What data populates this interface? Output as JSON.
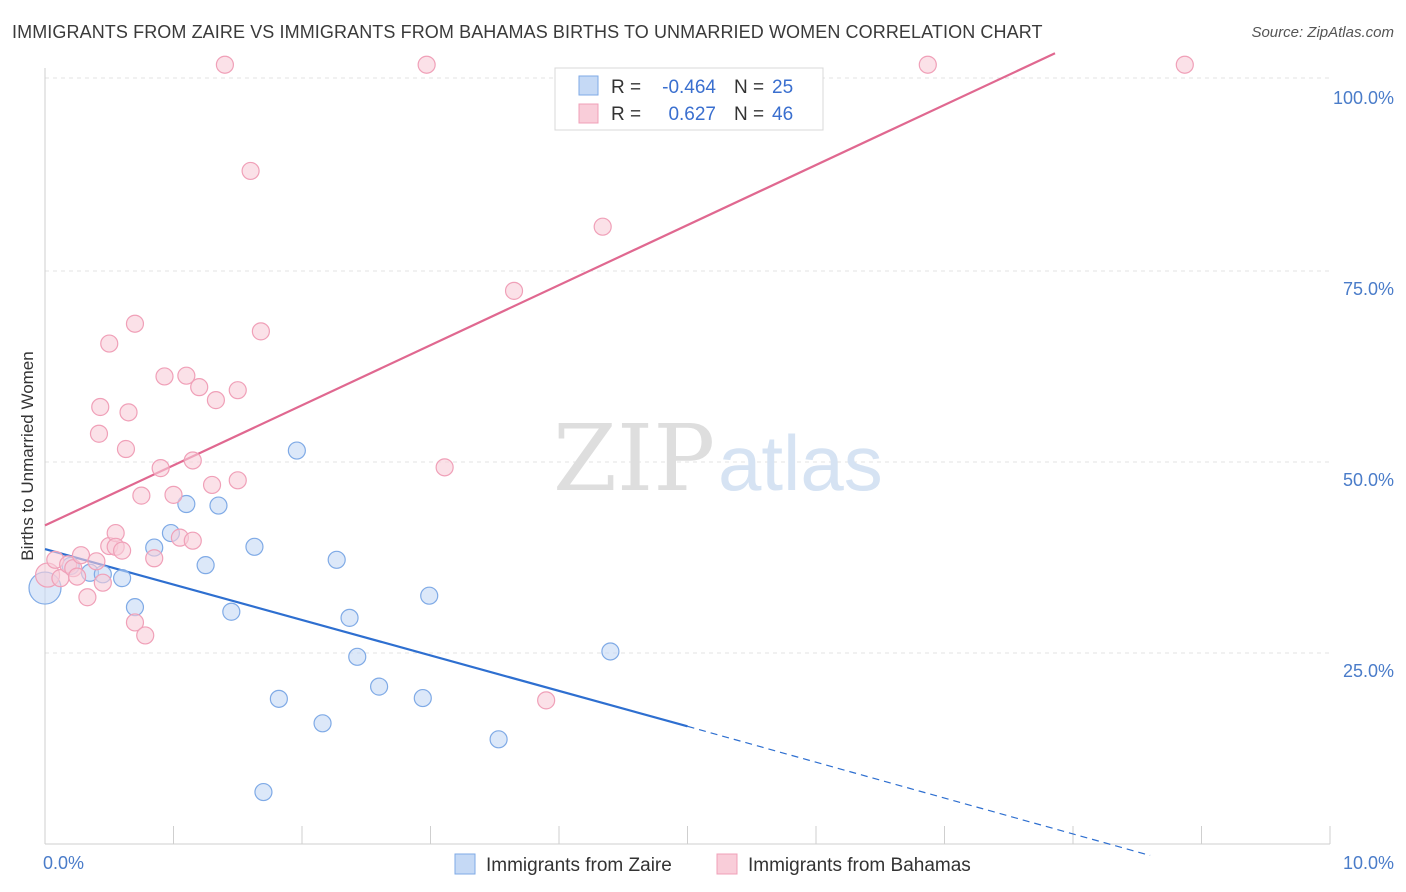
{
  "title": "IMMIGRANTS FROM ZAIRE VS IMMIGRANTS FROM BAHAMAS BIRTHS TO UNMARRIED WOMEN CORRELATION CHART",
  "source": "Source: ZipAtlas.com",
  "watermark": {
    "zip": "ZIP",
    "atlas": "atlas"
  },
  "chart_data": {
    "type": "scatter",
    "xlabel": "",
    "ylabel": "Births to Unmarried Women",
    "xlim": [
      0,
      10
    ],
    "ylim": [
      0,
      100
    ],
    "x_tick_labels": [
      "0.0%",
      "10.0%"
    ],
    "y_tick_labels": [
      "25.0%",
      "50.0%",
      "75.0%",
      "100.0%"
    ],
    "y_ticks": [
      25,
      50,
      75,
      100
    ],
    "grid": true,
    "legend_position": "top-center",
    "legend": [
      {
        "r_label": "R =",
        "r_value": "-0.464",
        "n_label": "N =",
        "n_value": "25"
      },
      {
        "r_label": "R =",
        "r_value": "0.627",
        "n_label": "N =",
        "n_value": "46"
      }
    ],
    "series": [
      {
        "name": "Immigrants from Zaire",
        "color": "#7faae6",
        "fill": "#c5d9f5",
        "line_color": "#2e6fd0",
        "trend": {
          "x0": 0,
          "y0": 38.6,
          "x1": 5.0,
          "y1": 15.4,
          "dash_to_x": 8.6,
          "dash_to_y": -1.5
        },
        "points": [
          {
            "x": 0.0,
            "y": 33.5,
            "r": 16
          },
          {
            "x": 0.2,
            "y": 36.4
          },
          {
            "x": 0.35,
            "y": 35.5
          },
          {
            "x": 0.45,
            "y": 35.3
          },
          {
            "x": 0.6,
            "y": 34.8
          },
          {
            "x": 0.7,
            "y": 31.0
          },
          {
            "x": 0.85,
            "y": 38.8
          },
          {
            "x": 0.98,
            "y": 40.7
          },
          {
            "x": 1.1,
            "y": 44.5
          },
          {
            "x": 1.25,
            "y": 36.5
          },
          {
            "x": 1.35,
            "y": 44.3
          },
          {
            "x": 1.45,
            "y": 30.4
          },
          {
            "x": 1.63,
            "y": 38.9
          },
          {
            "x": 1.7,
            "y": 6.8
          },
          {
            "x": 1.82,
            "y": 19.0
          },
          {
            "x": 1.96,
            "y": 51.5
          },
          {
            "x": 2.16,
            "y": 15.8
          },
          {
            "x": 2.27,
            "y": 37.2
          },
          {
            "x": 2.37,
            "y": 29.6
          },
          {
            "x": 2.43,
            "y": 24.5
          },
          {
            "x": 2.6,
            "y": 20.6
          },
          {
            "x": 2.94,
            "y": 19.1
          },
          {
            "x": 2.99,
            "y": 32.5
          },
          {
            "x": 3.53,
            "y": 13.7
          },
          {
            "x": 4.4,
            "y": 25.2
          }
        ]
      },
      {
        "name": "Immigrants from Bahamas",
        "color": "#f0a0b8",
        "fill": "#f9cdd9",
        "line_color": "#e06890",
        "trend": {
          "x0": 0,
          "y0": 41.7,
          "x1": 7.86,
          "y1": 103.5
        },
        "points": [
          {
            "x": 0.02,
            "y": 35.2,
            "r": 12
          },
          {
            "x": 0.08,
            "y": 37.2
          },
          {
            "x": 0.12,
            "y": 34.8
          },
          {
            "x": 0.18,
            "y": 36.6
          },
          {
            "x": 0.22,
            "y": 36.1
          },
          {
            "x": 0.25,
            "y": 35.0
          },
          {
            "x": 0.28,
            "y": 37.8
          },
          {
            "x": 0.33,
            "y": 32.3
          },
          {
            "x": 0.4,
            "y": 37.0
          },
          {
            "x": 0.45,
            "y": 34.2
          },
          {
            "x": 0.5,
            "y": 39.0
          },
          {
            "x": 0.42,
            "y": 53.7
          },
          {
            "x": 0.43,
            "y": 57.2
          },
          {
            "x": 0.55,
            "y": 40.7
          },
          {
            "x": 0.5,
            "y": 65.5
          },
          {
            "x": 0.55,
            "y": 38.9
          },
          {
            "x": 0.6,
            "y": 38.4
          },
          {
            "x": 0.63,
            "y": 51.7
          },
          {
            "x": 0.65,
            "y": 56.5
          },
          {
            "x": 0.7,
            "y": 68.1
          },
          {
            "x": 0.7,
            "y": 29.0
          },
          {
            "x": 0.75,
            "y": 45.6
          },
          {
            "x": 0.78,
            "y": 27.3
          },
          {
            "x": 0.85,
            "y": 37.4
          },
          {
            "x": 0.9,
            "y": 49.2
          },
          {
            "x": 0.93,
            "y": 61.2
          },
          {
            "x": 1.0,
            "y": 45.7
          },
          {
            "x": 1.05,
            "y": 40.1
          },
          {
            "x": 1.1,
            "y": 61.3
          },
          {
            "x": 1.15,
            "y": 39.7
          },
          {
            "x": 1.15,
            "y": 50.2
          },
          {
            "x": 1.2,
            "y": 59.8
          },
          {
            "x": 1.3,
            "y": 47.0
          },
          {
            "x": 1.33,
            "y": 58.1
          },
          {
            "x": 1.4,
            "y": 102.0
          },
          {
            "x": 1.5,
            "y": 59.4
          },
          {
            "x": 1.5,
            "y": 47.6
          },
          {
            "x": 1.6,
            "y": 88.1
          },
          {
            "x": 1.68,
            "y": 67.1
          },
          {
            "x": 2.97,
            "y": 102.0
          },
          {
            "x": 3.11,
            "y": 49.3
          },
          {
            "x": 3.65,
            "y": 72.4
          },
          {
            "x": 3.9,
            "y": 18.8
          },
          {
            "x": 4.34,
            "y": 80.8
          },
          {
            "x": 6.87,
            "y": 102.0
          },
          {
            "x": 8.87,
            "y": 102.0
          }
        ]
      }
    ]
  }
}
